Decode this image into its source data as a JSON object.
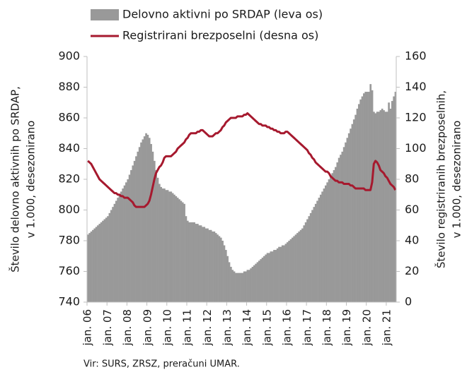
{
  "chart_data": {
    "type": "combo",
    "source": "Vir: SURS, ZRSZ, preračuni UMAR.",
    "y_label": [
      "Število delovno aktivnih po SRDAP,",
      "v 1.000, desezonirano"
    ],
    "y2_label": [
      "Število registriranih brezposelnih,",
      "v 1.000, desezonirano"
    ],
    "ylim": [
      740,
      900
    ],
    "yticks": [
      740,
      760,
      780,
      800,
      820,
      840,
      860,
      880,
      900
    ],
    "y2lim": [
      0,
      160
    ],
    "y2ticks": [
      0,
      20,
      40,
      60,
      80,
      100,
      120,
      140,
      160
    ],
    "grid": false,
    "legend": "top",
    "categories": [
      "jan. 06",
      null,
      null,
      null,
      null,
      null,
      null,
      null,
      null,
      null,
      null,
      null,
      "jan. 07",
      null,
      null,
      null,
      null,
      null,
      null,
      null,
      null,
      null,
      null,
      null,
      "jan. 08",
      null,
      null,
      null,
      null,
      null,
      null,
      null,
      null,
      null,
      null,
      null,
      "jan. 09",
      null,
      null,
      null,
      null,
      null,
      null,
      null,
      null,
      null,
      null,
      null,
      "jan. 10",
      null,
      null,
      null,
      null,
      null,
      null,
      null,
      null,
      null,
      null,
      null,
      "jan. 11",
      null,
      null,
      null,
      null,
      null,
      null,
      null,
      null,
      null,
      null,
      null,
      "jan. 12",
      null,
      null,
      null,
      null,
      null,
      null,
      null,
      null,
      null,
      null,
      null,
      "jan. 13",
      null,
      null,
      null,
      null,
      null,
      null,
      null,
      null,
      null,
      null,
      null,
      "jan. 14",
      null,
      null,
      null,
      null,
      null,
      null,
      null,
      null,
      null,
      null,
      null,
      "jan. 15",
      null,
      null,
      null,
      null,
      null,
      null,
      null,
      null,
      null,
      null,
      null,
      "jan. 16",
      null,
      null,
      null,
      null,
      null,
      null,
      null,
      null,
      null,
      null,
      null,
      "jan. 17",
      null,
      null,
      null,
      null,
      null,
      null,
      null,
      null,
      null,
      null,
      null,
      "jan. 18",
      null,
      null,
      null,
      null,
      null,
      null,
      null,
      null,
      null,
      null,
      null,
      "jan. 19",
      null,
      null,
      null,
      null,
      null,
      null,
      null,
      null,
      null,
      null,
      null,
      "jan. 20",
      null,
      null,
      null,
      null,
      null,
      null,
      null,
      null,
      null,
      null,
      null,
      "jan. 21",
      null,
      null,
      null,
      null,
      null
    ],
    "series": [
      {
        "name": "Delovno aktivni po SRDAP (leva os)",
        "type": "bar",
        "axis": "y",
        "color": "#999999",
        "values": [
          784,
          785,
          786,
          787,
          788,
          789,
          790,
          791,
          792,
          793,
          794,
          795,
          796,
          798,
          800,
          802,
          804,
          806,
          808,
          810,
          812,
          814,
          816,
          818,
          820,
          823,
          826,
          829,
          832,
          835,
          838,
          841,
          844,
          846,
          848,
          850,
          849,
          847,
          843,
          838,
          832,
          826,
          821,
          817,
          815,
          814,
          814,
          813,
          813,
          812,
          812,
          811,
          810,
          809,
          808,
          807,
          806,
          805,
          804,
          796,
          793,
          792,
          792,
          792,
          792,
          791,
          791,
          790,
          790,
          789,
          789,
          788,
          788,
          787,
          787,
          786,
          786,
          785,
          784,
          783,
          782,
          780,
          777,
          774,
          770,
          766,
          763,
          761,
          760,
          759,
          759,
          759,
          759,
          759,
          760,
          760,
          761,
          761,
          762,
          763,
          764,
          765,
          766,
          767,
          768,
          769,
          770,
          771,
          772,
          772,
          773,
          773,
          774,
          774,
          775,
          776,
          776,
          777,
          777,
          778,
          779,
          780,
          781,
          782,
          783,
          784,
          785,
          786,
          787,
          788,
          790,
          792,
          794,
          796,
          798,
          800,
          802,
          804,
          806,
          808,
          810,
          812,
          814,
          816,
          818,
          820,
          822,
          824,
          826,
          828,
          831,
          834,
          836,
          838,
          841,
          844,
          847,
          850,
          853,
          856,
          859,
          862,
          866,
          869,
          872,
          874,
          876,
          877,
          877,
          877,
          882,
          878,
          864,
          863,
          864,
          864,
          865,
          866,
          865,
          864,
          864,
          870,
          866,
          871,
          874,
          877
        ]
      },
      {
        "name": "Registrirani brezposelni (desna os)",
        "type": "line",
        "axis": "y2",
        "color": "#a6192e",
        "values": [
          92,
          91,
          90,
          88,
          86,
          84,
          82,
          80,
          79,
          78,
          77,
          76,
          75,
          74,
          73,
          72,
          71,
          71,
          70,
          70,
          69,
          69,
          68,
          68,
          68,
          67,
          66,
          65,
          63,
          62,
          62,
          62,
          62,
          62,
          62,
          63,
          64,
          66,
          70,
          75,
          80,
          84,
          86,
          88,
          89,
          91,
          94,
          95,
          95,
          95,
          95,
          96,
          97,
          98,
          100,
          101,
          102,
          103,
          104,
          106,
          107,
          109,
          110,
          110,
          110,
          110,
          111,
          111,
          112,
          112,
          111,
          110,
          109,
          108,
          108,
          108,
          109,
          110,
          110,
          111,
          112,
          114,
          115,
          117,
          118,
          119,
          120,
          120,
          120,
          120,
          121,
          121,
          121,
          121,
          122,
          122,
          123,
          122,
          121,
          120,
          119,
          118,
          117,
          116,
          116,
          115,
          115,
          115,
          114,
          114,
          113,
          113,
          112,
          112,
          111,
          111,
          110,
          110,
          110,
          111,
          111,
          110,
          109,
          108,
          107,
          106,
          105,
          104,
          103,
          102,
          101,
          100,
          99,
          97,
          96,
          94,
          93,
          91,
          90,
          89,
          88,
          87,
          86,
          85,
          85,
          84,
          82,
          81,
          80,
          79,
          79,
          78,
          78,
          78,
          77,
          77,
          77,
          77,
          76,
          76,
          75,
          74,
          74,
          74,
          74,
          74,
          74,
          73,
          73,
          73,
          73,
          78,
          90,
          92,
          91,
          89,
          86,
          85,
          84,
          82,
          81,
          79,
          77,
          76,
          75,
          73
        ]
      }
    ]
  }
}
